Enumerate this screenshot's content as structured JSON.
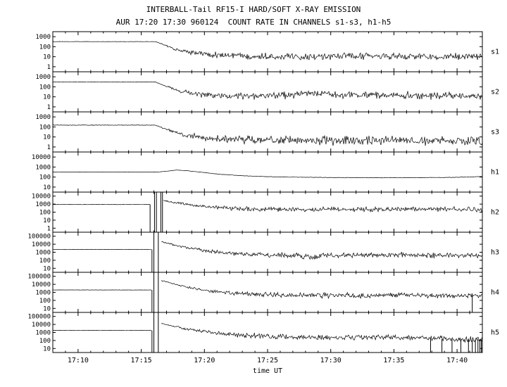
{
  "title": "INTERBALL-Tail RF15-I HARD/SOFT X-RAY EMISSION",
  "subtitle": "AUR 17:20 17:30 960124  COUNT RATE IN CHANNELS s1-s3, h1-h5",
  "chart_data": {
    "type": "line",
    "xlabel": "time UT",
    "x_domain_minutes_after_1700": [
      8,
      42
    ],
    "x_ticks": [
      {
        "label": "17:10",
        "t": 10
      },
      {
        "label": "17:15",
        "t": 15
      },
      {
        "label": "17:20",
        "t": 20
      },
      {
        "label": "17:25",
        "t": 25
      },
      {
        "label": "17:30",
        "t": 30
      },
      {
        "label": "17:35",
        "t": 35
      },
      {
        "label": "17:40",
        "t": 40
      }
    ],
    "panels": [
      {
        "label": "s1",
        "y_ticks": [
          1000,
          100,
          10,
          1
        ],
        "log_range": [
          -0.5,
          3.5
        ],
        "segments": [
          [
            [
              8,
              320,
              0.012
            ],
            [
              16.1,
              320,
              0.012
            ],
            [
              16.6,
              200,
              0.03
            ],
            [
              17.6,
              60,
              0.07
            ],
            [
              19,
              25,
              0.13
            ],
            [
              21,
              15,
              0.18
            ],
            [
              25,
              11,
              0.2
            ],
            [
              33,
              11,
              0.2
            ],
            [
              42,
              10,
              0.2
            ]
          ]
        ],
        "vlines": []
      },
      {
        "label": "s2",
        "y_ticks": [
          1000,
          100,
          10,
          1
        ],
        "log_range": [
          -0.5,
          3.5
        ],
        "segments": [
          [
            [
              8,
              300,
              0.012
            ],
            [
              16.1,
              300,
              0.012
            ],
            [
              16.7,
              150,
              0.04
            ],
            [
              18,
              40,
              0.1
            ],
            [
              19.5,
              18,
              0.16
            ],
            [
              22,
              12,
              0.2
            ],
            [
              26,
              13,
              0.22
            ],
            [
              28,
              22,
              0.18
            ],
            [
              31,
              16,
              0.2
            ],
            [
              35,
              14,
              0.22
            ],
            [
              39,
              13,
              0.22
            ],
            [
              42,
              14,
              0.22
            ]
          ]
        ],
        "vlines": []
      },
      {
        "label": "s3",
        "y_ticks": [
          1000,
          100,
          10,
          1
        ],
        "log_range": [
          -0.5,
          3.5
        ],
        "segments": [
          [
            [
              8,
              150,
              0.018
            ],
            [
              16.1,
              150,
              0.018
            ],
            [
              17,
              60,
              0.06
            ],
            [
              18.5,
              15,
              0.14
            ],
            [
              20.5,
              7,
              0.22
            ],
            [
              24,
              5,
              0.26
            ],
            [
              30,
              4.5,
              0.28
            ],
            [
              36,
              4.5,
              0.28
            ],
            [
              42,
              4,
              0.28
            ]
          ]
        ],
        "vlines": []
      },
      {
        "label": "h1",
        "y_ticks": [
          10000,
          1000,
          100,
          10
        ],
        "log_range": [
          0.5,
          4.5
        ],
        "segments": [
          [
            [
              8,
              320,
              0.006
            ],
            [
              16.3,
              320,
              0.006
            ],
            [
              17,
              380,
              0.006
            ],
            [
              17.8,
              500,
              0.006
            ],
            [
              18.6,
              430,
              0.007
            ],
            [
              19.5,
              330,
              0.008
            ],
            [
              21,
              200,
              0.01
            ],
            [
              23,
              135,
              0.012
            ],
            [
              25.5,
              105,
              0.013
            ],
            [
              28,
              95,
              0.014
            ],
            [
              31,
              88,
              0.015
            ],
            [
              34,
              85,
              0.015
            ],
            [
              37,
              88,
              0.015
            ],
            [
              39.5,
              92,
              0.015
            ],
            [
              41,
              100,
              0.015
            ],
            [
              42,
              115,
              0.015
            ]
          ]
        ],
        "vlines": []
      },
      {
        "label": "h2",
        "y_ticks": [
          10000,
          1000,
          100,
          10,
          1
        ],
        "log_range": [
          -0.5,
          4.5
        ],
        "segments": [
          [
            [
              8,
              900,
              0.012
            ],
            [
              15.7,
              900,
              0.012
            ]
          ],
          [
            [
              16.75,
              2800,
              0.05
            ],
            [
              17.5,
              1800,
              0.07
            ],
            [
              18.5,
              1000,
              0.1
            ],
            [
              20,
              500,
              0.13
            ],
            [
              22,
              310,
              0.16
            ],
            [
              24,
              240,
              0.18
            ],
            [
              26,
              210,
              0.18
            ],
            [
              28,
              200,
              0.18
            ],
            [
              30,
              250,
              0.17
            ],
            [
              32,
              230,
              0.18
            ],
            [
              34,
              210,
              0.18
            ],
            [
              35.5,
              260,
              0.17
            ],
            [
              37,
              230,
              0.18
            ],
            [
              39,
              240,
              0.18
            ],
            [
              41,
              220,
              0.18
            ],
            [
              42,
              190,
              0.2
            ]
          ]
        ],
        "vlines": [
          [
            15.7,
            0.32,
            900
          ],
          [
            16.05,
            0.32,
            31000
          ],
          [
            16.2,
            0.32,
            31000
          ],
          [
            16.55,
            0.32,
            31000
          ],
          [
            16.68,
            0.32,
            31000
          ]
        ]
      },
      {
        "label": "h3",
        "y_ticks": [
          100000,
          10000,
          1000,
          100,
          10
        ],
        "log_range": [
          0.5,
          5.5
        ],
        "segments": [
          [
            [
              8,
              2200,
              0.01
            ],
            [
              15.85,
              2200,
              0.01
            ]
          ],
          [
            [
              16.6,
              22000,
              0.04
            ],
            [
              17.5,
              9000,
              0.06
            ],
            [
              18.5,
              4000,
              0.09
            ],
            [
              20,
              1700,
              0.12
            ],
            [
              21.5,
              900,
              0.15
            ],
            [
              23,
              600,
              0.17
            ],
            [
              25,
              480,
              0.19
            ],
            [
              27,
              420,
              0.2
            ],
            [
              28.3,
              260,
              0.24
            ],
            [
              29.5,
              380,
              0.2
            ],
            [
              31,
              420,
              0.19
            ],
            [
              33,
              430,
              0.19
            ],
            [
              35,
              470,
              0.19
            ],
            [
              37,
              430,
              0.2
            ],
            [
              39,
              400,
              0.2
            ],
            [
              41,
              380,
              0.2
            ],
            [
              42,
              330,
              0.21
            ]
          ]
        ],
        "vlines": [
          [
            15.85,
            3.2,
            2200
          ],
          [
            16.0,
            3.2,
            300000
          ],
          [
            16.35,
            3.2,
            300000
          ]
        ]
      },
      {
        "label": "h4",
        "y_ticks": [
          100000,
          10000,
          1000,
          100,
          10
        ],
        "log_range": [
          0.5,
          5.5
        ],
        "segments": [
          [
            [
              8,
              2000,
              0.01
            ],
            [
              15.85,
              2000,
              0.01
            ]
          ],
          [
            [
              16.6,
              30000,
              0.04
            ],
            [
              17.3,
              15000,
              0.05
            ],
            [
              18.3,
              6000,
              0.08
            ],
            [
              19.5,
              2600,
              0.11
            ],
            [
              21,
              1200,
              0.14
            ],
            [
              22.5,
              750,
              0.16
            ],
            [
              24.5,
              520,
              0.18
            ],
            [
              26.5,
              430,
              0.19
            ],
            [
              28.5,
              380,
              0.2
            ],
            [
              30.5,
              420,
              0.19
            ],
            [
              32.5,
              380,
              0.2
            ],
            [
              34.5,
              470,
              0.18
            ],
            [
              36,
              520,
              0.18
            ],
            [
              37.5,
              430,
              0.19
            ],
            [
              39,
              400,
              0.2
            ],
            [
              40.5,
              430,
              0.2
            ],
            [
              42,
              380,
              0.2
            ]
          ]
        ],
        "vlines": [
          [
            15.85,
            3.2,
            2000
          ],
          [
            16.0,
            3.2,
            300000
          ],
          [
            16.35,
            3.2,
            300000
          ],
          [
            41.2,
            3.2,
            400
          ]
        ]
      },
      {
        "label": "h5",
        "y_ticks": [
          100000,
          10000,
          1000,
          100,
          10
        ],
        "log_range": [
          0.5,
          5.5
        ],
        "segments": [
          [
            [
              8,
              1800,
              0.01
            ],
            [
              15.85,
              1800,
              0.01
            ]
          ],
          [
            [
              16.6,
              15000,
              0.04
            ],
            [
              17.5,
              6000,
              0.07
            ],
            [
              18.5,
              2800,
              0.1
            ],
            [
              20,
              1300,
              0.13
            ],
            [
              21.5,
              700,
              0.16
            ],
            [
              23,
              450,
              0.18
            ],
            [
              25,
              330,
              0.2
            ],
            [
              27,
              280,
              0.2
            ],
            [
              29,
              260,
              0.2
            ],
            [
              31,
              240,
              0.2
            ],
            [
              33,
              230,
              0.2
            ],
            [
              35,
              220,
              0.21
            ],
            [
              37,
              200,
              0.21
            ],
            [
              39,
              170,
              0.22
            ],
            [
              40.5,
              150,
              0.23
            ],
            [
              42,
              130,
              0.24
            ]
          ]
        ],
        "vlines": [
          [
            15.85,
            3.2,
            1800
          ],
          [
            16.0,
            3.2,
            300000
          ],
          [
            16.35,
            3.2,
            300000
          ],
          [
            37.9,
            3.2,
            160
          ],
          [
            38.8,
            3.2,
            150
          ],
          [
            39.6,
            3.2,
            140
          ],
          [
            40.3,
            3.2,
            140
          ],
          [
            40.9,
            3.2,
            130
          ],
          [
            41.2,
            3.2,
            130
          ],
          [
            41.45,
            3.2,
            130
          ],
          [
            41.65,
            3.2,
            130
          ],
          [
            41.8,
            3.2,
            130
          ],
          [
            41.92,
            3.2,
            130
          ]
        ]
      }
    ]
  }
}
